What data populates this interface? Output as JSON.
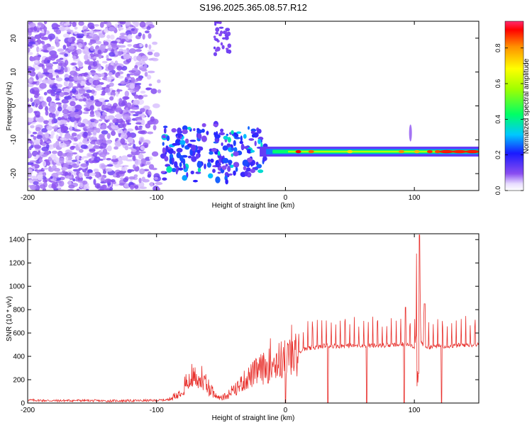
{
  "title": "S196.2025.365.08.57.R12",
  "chart_data": [
    {
      "type": "heatmap",
      "xlabel": "Height of straight line (km)",
      "ylabel": "Frequency (Hz)",
      "xlim": [
        -200,
        150
      ],
      "ylim": [
        -25,
        25
      ],
      "xticks": [
        -200,
        -100,
        0,
        100
      ],
      "yticks": [
        -20,
        -10,
        0,
        10,
        20
      ],
      "colorbar": {
        "label": "Normalized spectral amplitude",
        "range": [
          0.0,
          0.95
        ],
        "ticks": [
          0.0,
          0.2,
          0.4,
          0.6,
          0.8
        ]
      },
      "features": [
        {
          "name": "diffuse noise",
          "x_range": [
            -200,
            -95
          ],
          "y_range": [
            -25,
            25
          ],
          "amplitude": 0.1
        },
        {
          "name": "steady tone",
          "x_range": [
            -20,
            150
          ],
          "y": -13.5,
          "amplitude": 0.9
        },
        {
          "name": "onset blobs",
          "x_range": [
            -95,
            -15
          ],
          "y_range": [
            -22,
            -3
          ],
          "amplitude": 0.4
        }
      ]
    },
    {
      "type": "line",
      "xlabel": "Height of straight line (km)",
      "ylabel": "SNR (10 * v/v)",
      "xlim": [
        -200,
        150
      ],
      "ylim": [
        0,
        1450
      ],
      "xticks": [
        -200,
        -100,
        0,
        100
      ],
      "yticks": [
        0,
        200,
        400,
        600,
        800,
        1000,
        1200,
        1400
      ],
      "color": "#e8302c",
      "series": [
        {
          "name": "SNR",
          "x": [
            -200,
            -180,
            -160,
            -140,
            -120,
            -100,
            -90,
            -85,
            -80,
            -75,
            -70,
            -65,
            -60,
            -55,
            -50,
            -45,
            -40,
            -35,
            -30,
            -25,
            -20,
            -15,
            -10,
            -5,
            0,
            5,
            10,
            15,
            20,
            25,
            30,
            40,
            50,
            60,
            70,
            80,
            90,
            95,
            100,
            103,
            104,
            105,
            110,
            120,
            130,
            140,
            150
          ],
          "y": [
            25,
            20,
            22,
            18,
            20,
            22,
            30,
            60,
            120,
            180,
            240,
            200,
            130,
            70,
            40,
            60,
            110,
            170,
            220,
            260,
            300,
            320,
            360,
            380,
            400,
            420,
            440,
            460,
            470,
            480,
            490,
            490,
            490,
            495,
            490,
            495,
            500,
            510,
            480,
            700,
            1440,
            520,
            480,
            490,
            490,
            500,
            500
          ]
        }
      ],
      "spikes_down": [
        0,
        33,
        63,
        92,
        121
      ],
      "spikes_up": [
        {
          "x": 104,
          "y": 1440
        },
        {
          "x": 102,
          "y": 1280
        },
        {
          "x": 93,
          "y": 820
        },
        {
          "x": 108,
          "y": 850
        }
      ]
    }
  ]
}
